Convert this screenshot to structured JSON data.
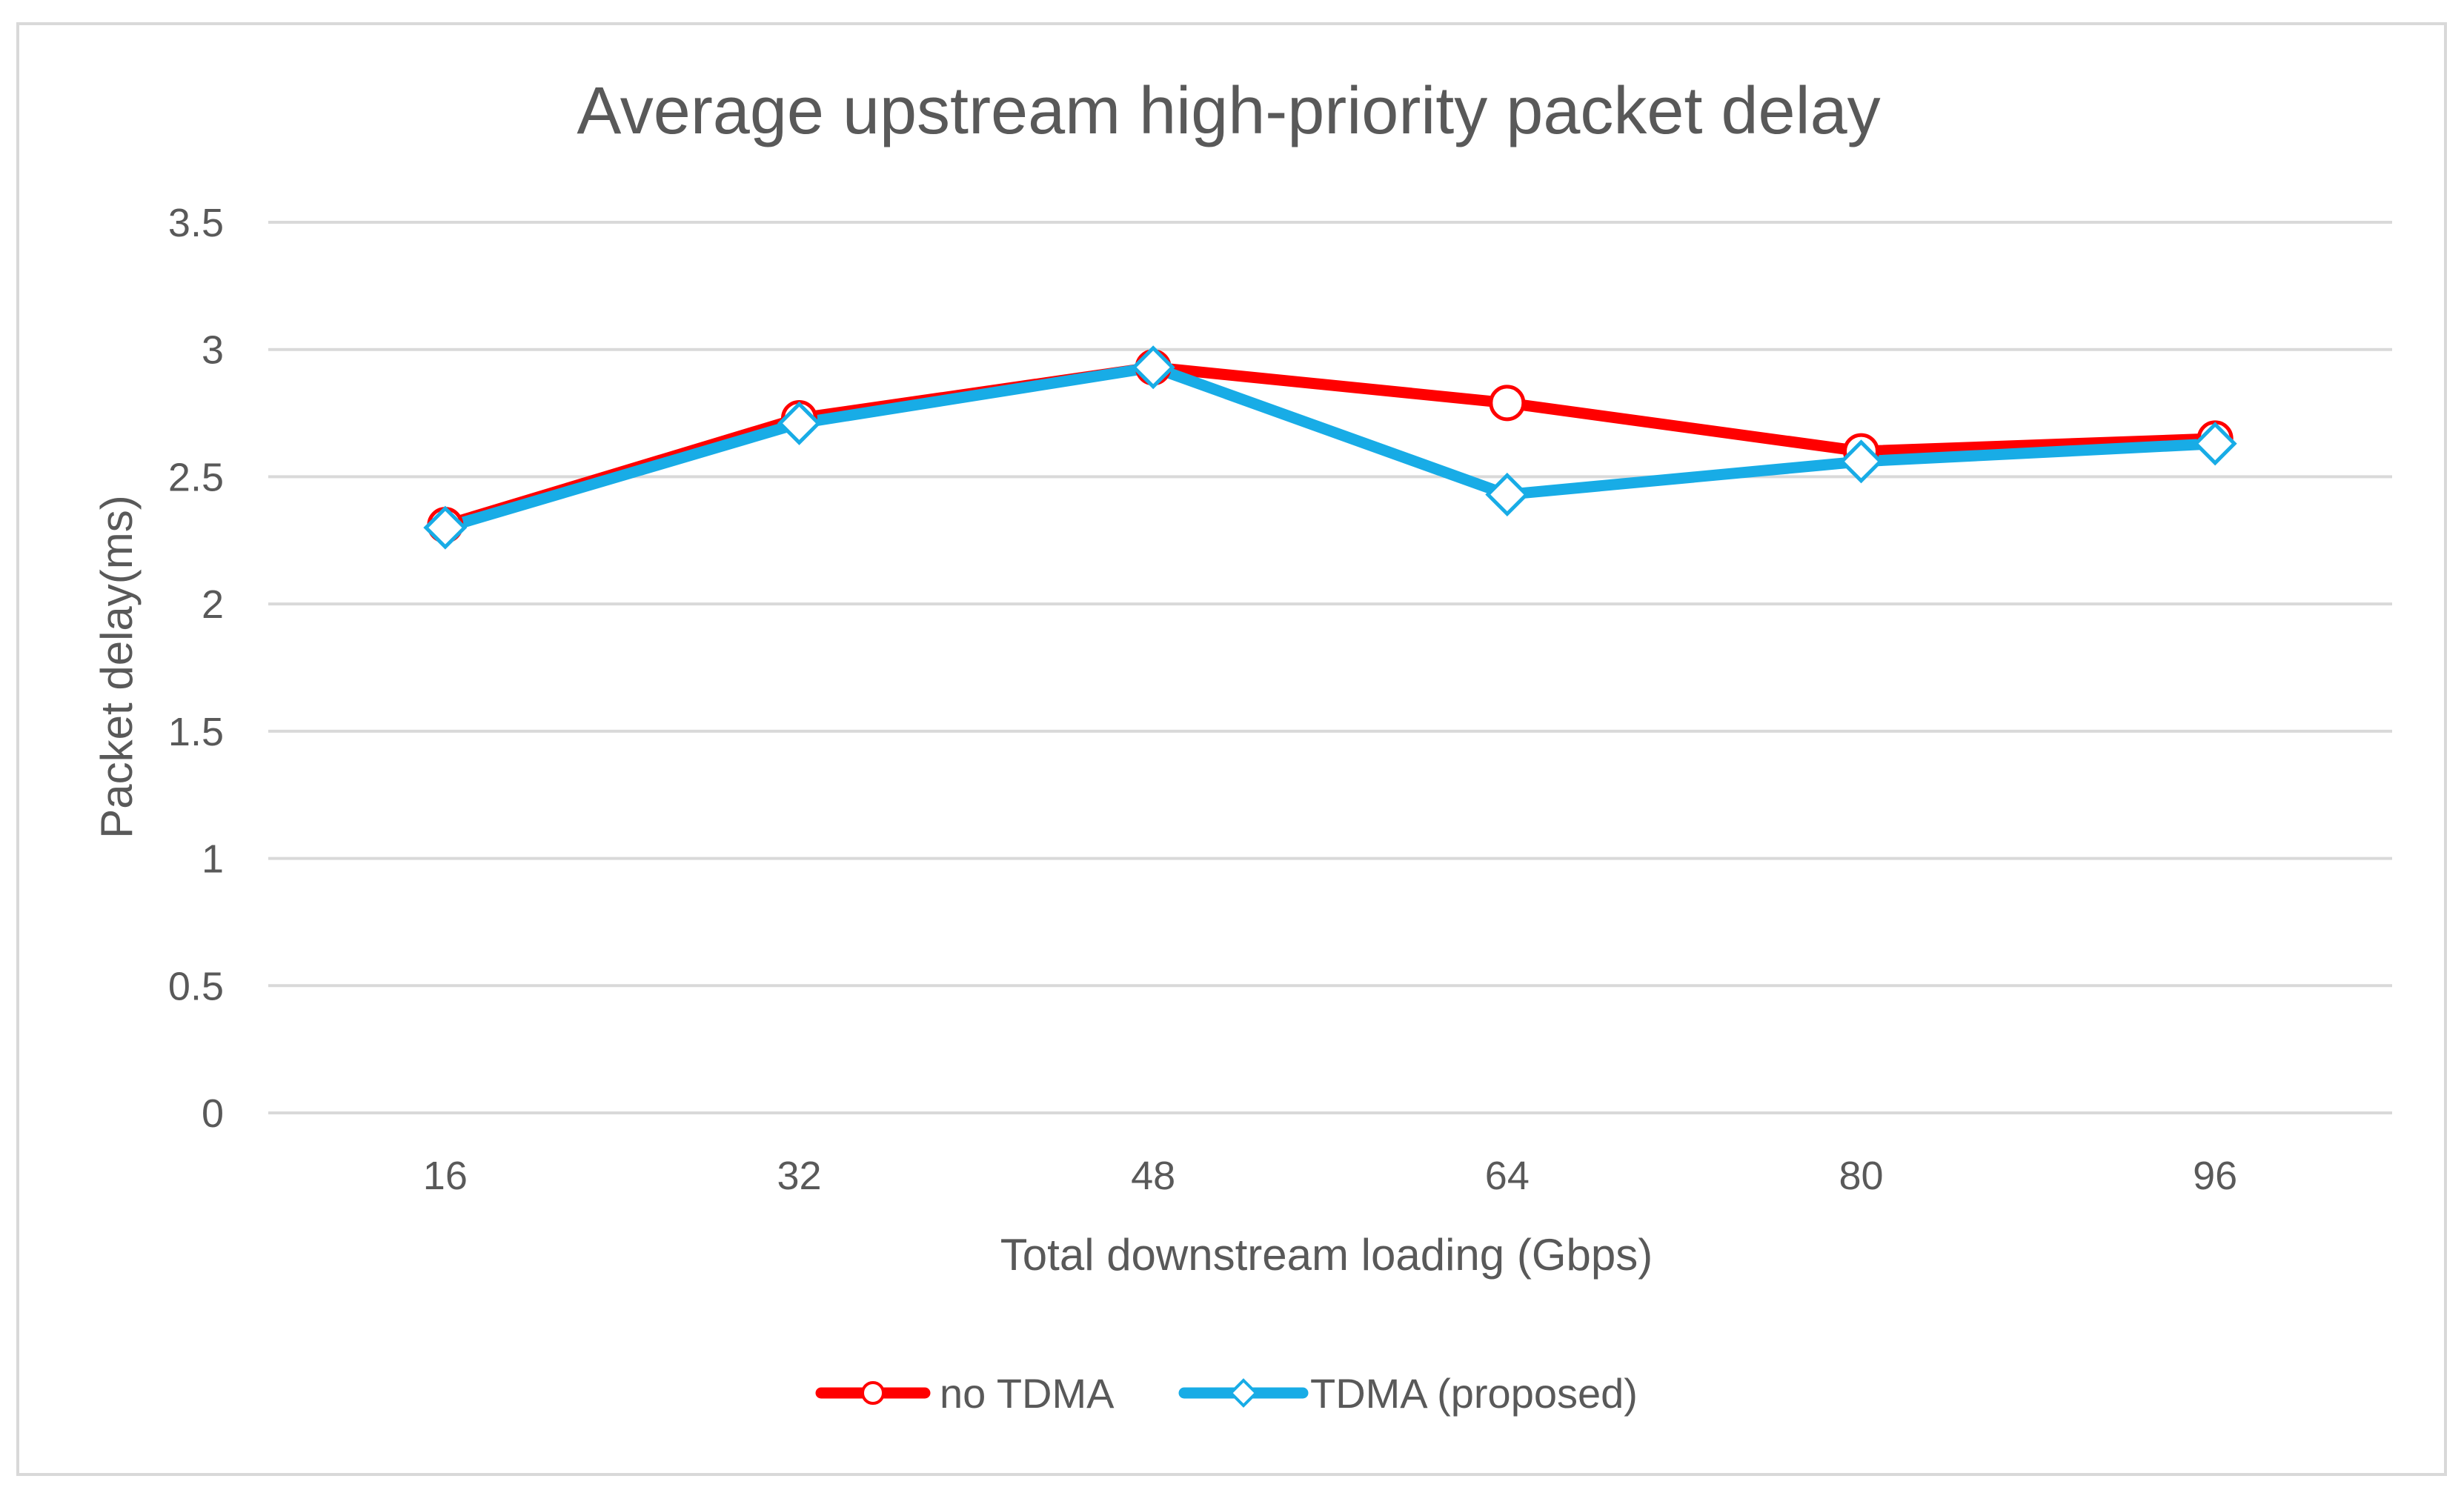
{
  "chart_data": {
    "type": "line",
    "title": "Average upstream high-priority packet delay",
    "xlabel": "Total downstream loading (Gbps)",
    "ylabel": "Packet delay(ms)",
    "categories": [
      "16",
      "32",
      "48",
      "64",
      "80",
      "96"
    ],
    "ylim": [
      0,
      3.5
    ],
    "yticks": [
      "0",
      "0.5",
      "1",
      "1.5",
      "2",
      "2.5",
      "3",
      "3.5"
    ],
    "grid": true,
    "legend_position": "bottom",
    "series": [
      {
        "name": "no TDMA",
        "values": [
          2.31,
          2.73,
          2.93,
          2.79,
          2.6,
          2.65
        ],
        "color": "#ff0000",
        "marker": "circle"
      },
      {
        "name": "TDMA (proposed)",
        "values": [
          2.3,
          2.71,
          2.93,
          2.43,
          2.56,
          2.63
        ],
        "color": "#18ace6",
        "marker": "diamond"
      }
    ]
  }
}
